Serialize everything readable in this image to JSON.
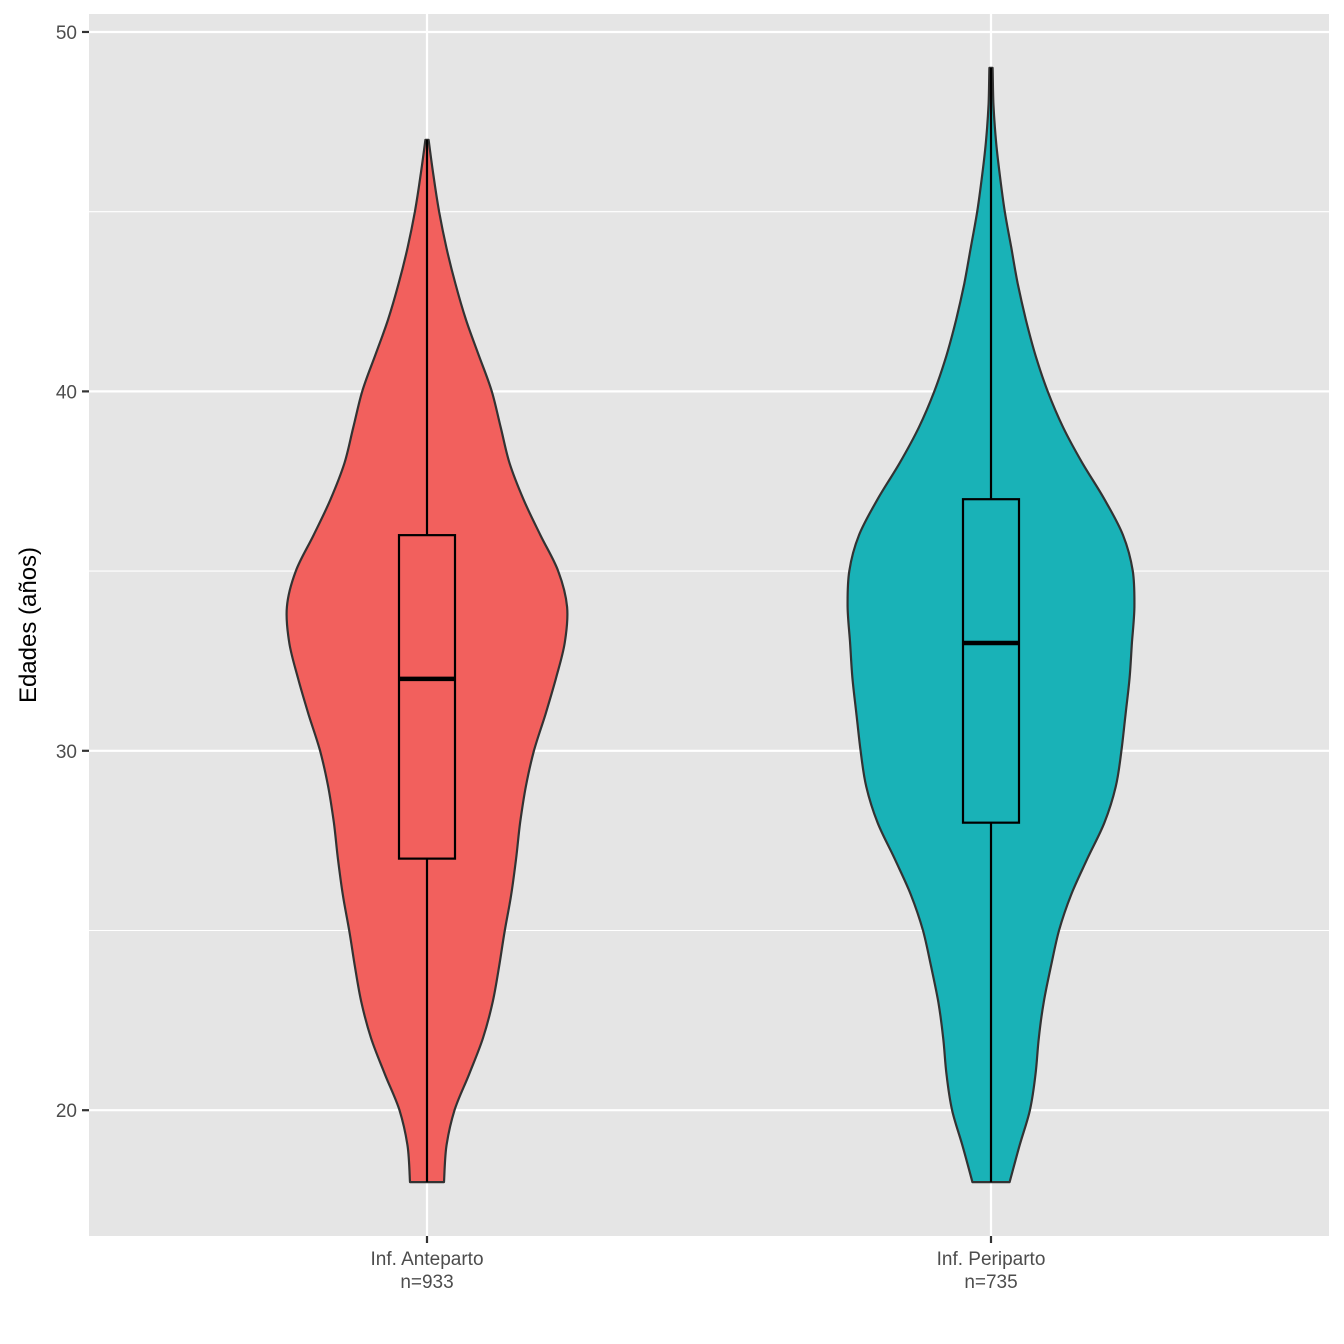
{
  "chart_data": {
    "type": "violin",
    "title": "",
    "xlabel": "",
    "ylabel": "Edades (años)",
    "ylim": [
      16.5,
      50.5
    ],
    "yticks": [
      20,
      30,
      40,
      50
    ],
    "grid": true,
    "legend": "none",
    "background": "#e5e5e5",
    "gridline_color": "#ffffff",
    "groups": [
      {
        "label": "Inf. Anteparto",
        "n_label": "n=933",
        "color": "#f2605d",
        "min": 18,
        "q1": 27,
        "median": 32,
        "q3": 36,
        "max": 47,
        "density_profile": [
          [
            18,
            0.21
          ],
          [
            19,
            0.24
          ],
          [
            20,
            0.34
          ],
          [
            21,
            0.52
          ],
          [
            22,
            0.69
          ],
          [
            23,
            0.81
          ],
          [
            24,
            0.89
          ],
          [
            25,
            0.96
          ],
          [
            26,
            1.04
          ],
          [
            27,
            1.1
          ],
          [
            28,
            1.15
          ],
          [
            29,
            1.22
          ],
          [
            30,
            1.32
          ],
          [
            31,
            1.46
          ],
          [
            32,
            1.59
          ],
          [
            33,
            1.7
          ],
          [
            34,
            1.73
          ],
          [
            35,
            1.62
          ],
          [
            36,
            1.4
          ],
          [
            37,
            1.19
          ],
          [
            38,
            1.02
          ],
          [
            39,
            0.91
          ],
          [
            40,
            0.8
          ],
          [
            41,
            0.64
          ],
          [
            42,
            0.48
          ],
          [
            43,
            0.35
          ],
          [
            44,
            0.24
          ],
          [
            45,
            0.15
          ],
          [
            46,
            0.08
          ],
          [
            47,
            0.02
          ]
        ]
      },
      {
        "label": "Inf. Periparto",
        "n_label": "n=735",
        "color": "#19b2b7",
        "min": 18,
        "q1": 28,
        "median": 33,
        "q3": 37,
        "max": 49,
        "density_profile": [
          [
            18,
            0.23
          ],
          [
            19,
            0.35
          ],
          [
            20,
            0.48
          ],
          [
            21,
            0.55
          ],
          [
            22,
            0.59
          ],
          [
            23,
            0.65
          ],
          [
            24,
            0.74
          ],
          [
            25,
            0.84
          ],
          [
            26,
            0.99
          ],
          [
            27,
            1.19
          ],
          [
            28,
            1.4
          ],
          [
            29,
            1.54
          ],
          [
            30,
            1.61
          ],
          [
            31,
            1.66
          ],
          [
            32,
            1.71
          ],
          [
            33,
            1.74
          ],
          [
            34,
            1.77
          ],
          [
            35,
            1.75
          ],
          [
            36,
            1.63
          ],
          [
            37,
            1.4
          ],
          [
            38,
            1.13
          ],
          [
            39,
            0.89
          ],
          [
            40,
            0.7
          ],
          [
            41,
            0.55
          ],
          [
            42,
            0.43
          ],
          [
            43,
            0.33
          ],
          [
            44,
            0.25
          ],
          [
            45,
            0.17
          ],
          [
            46,
            0.11
          ],
          [
            47,
            0.06
          ],
          [
            48,
            0.03
          ],
          [
            49,
            0.02
          ]
        ]
      }
    ]
  }
}
